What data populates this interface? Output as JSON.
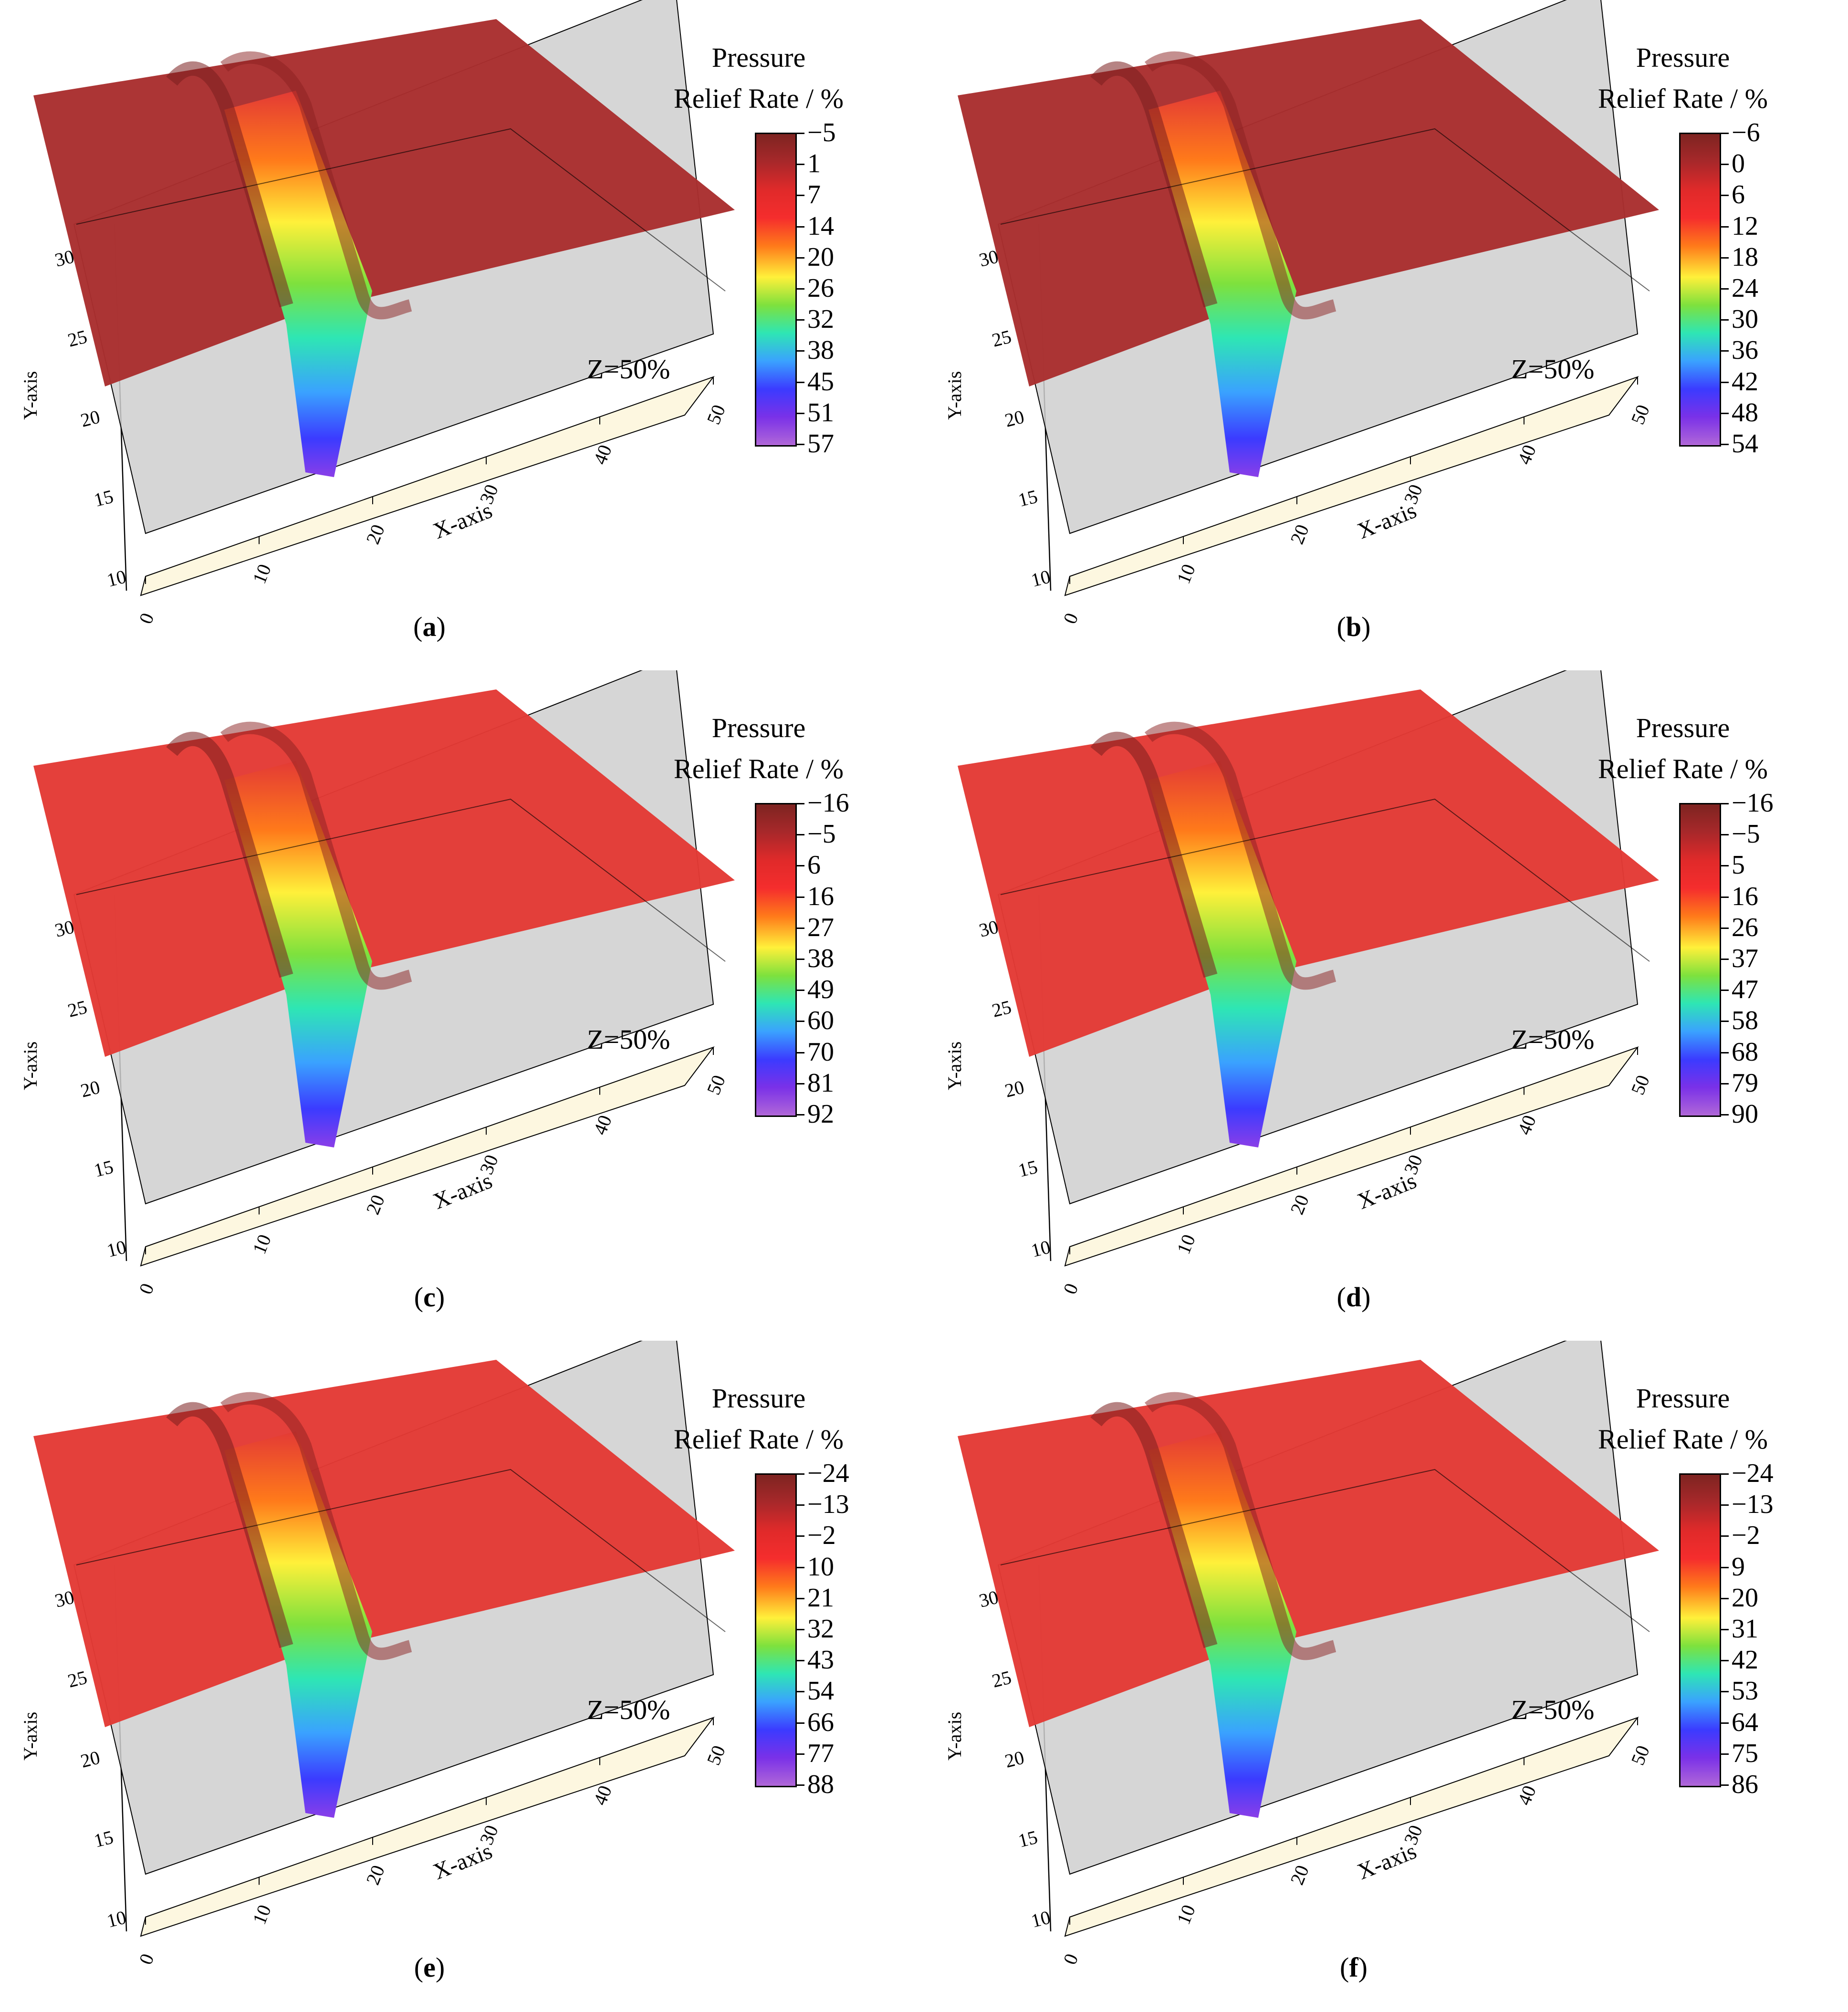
{
  "legend_title_line1": "Pressure",
  "legend_title_line2": "Relief Rate / %",
  "plane_label": "Z=50%",
  "x_axis_label": "X-axis",
  "y_axis_label": "Y-axis",
  "colors": {
    "surface_top": "#a92e2e",
    "surface_mid": "#e33a35",
    "plane_gray": "#cfcfcf",
    "floor_cream": "#fdf7e0"
  },
  "chart_data": [
    {
      "type": "surface",
      "panel_label": "a",
      "x_ticks": [
        "0",
        "10",
        "20",
        "30",
        "40",
        "50"
      ],
      "y_ticks": [
        "10",
        "15",
        "20",
        "25",
        "30"
      ],
      "xlim": [
        0,
        50
      ],
      "ylim": [
        10,
        32
      ],
      "colorbar_ticks": [
        "−5",
        "1",
        "7",
        "14",
        "20",
        "26",
        "32",
        "38",
        "45",
        "51",
        "57"
      ],
      "colorbar_range": [
        -5,
        57
      ]
    },
    {
      "type": "surface",
      "panel_label": "b",
      "x_ticks": [
        "0",
        "10",
        "20",
        "30",
        "40",
        "50"
      ],
      "y_ticks": [
        "10",
        "15",
        "20",
        "25",
        "30"
      ],
      "xlim": [
        0,
        50
      ],
      "ylim": [
        10,
        32
      ],
      "colorbar_ticks": [
        "−6",
        "0",
        "6",
        "12",
        "18",
        "24",
        "30",
        "36",
        "42",
        "48",
        "54"
      ],
      "colorbar_range": [
        -6,
        54
      ]
    },
    {
      "type": "surface",
      "panel_label": "c",
      "x_ticks": [
        "0",
        "10",
        "20",
        "30",
        "40",
        "50"
      ],
      "y_ticks": [
        "10",
        "15",
        "20",
        "25",
        "30"
      ],
      "xlim": [
        0,
        50
      ],
      "ylim": [
        10,
        32
      ],
      "colorbar_ticks": [
        "−16",
        "−5",
        "6",
        "16",
        "27",
        "38",
        "49",
        "60",
        "70",
        "81",
        "92"
      ],
      "colorbar_range": [
        -16,
        92
      ]
    },
    {
      "type": "surface",
      "panel_label": "d",
      "x_ticks": [
        "0",
        "10",
        "20",
        "30",
        "40",
        "50"
      ],
      "y_ticks": [
        "10",
        "15",
        "20",
        "25",
        "30"
      ],
      "xlim": [
        0,
        50
      ],
      "ylim": [
        10,
        32
      ],
      "colorbar_ticks": [
        "−16",
        "−5",
        "5",
        "16",
        "26",
        "37",
        "47",
        "58",
        "68",
        "79",
        "90"
      ],
      "colorbar_range": [
        -16,
        90
      ]
    },
    {
      "type": "surface",
      "panel_label": "e",
      "x_ticks": [
        "0",
        "10",
        "20",
        "30",
        "40",
        "50"
      ],
      "y_ticks": [
        "10",
        "15",
        "20",
        "25",
        "30"
      ],
      "xlim": [
        0,
        50
      ],
      "ylim": [
        10,
        32
      ],
      "colorbar_ticks": [
        "−24",
        "−13",
        "−2",
        "10",
        "21",
        "32",
        "43",
        "54",
        "66",
        "77",
        "88"
      ],
      "colorbar_range": [
        -24,
        88
      ]
    },
    {
      "type": "surface",
      "panel_label": "f",
      "x_ticks": [
        "0",
        "10",
        "20",
        "30",
        "40",
        "50"
      ],
      "y_ticks": [
        "10",
        "15",
        "20",
        "25",
        "30"
      ],
      "xlim": [
        0,
        50
      ],
      "ylim": [
        10,
        32
      ],
      "colorbar_ticks": [
        "−24",
        "−13",
        "−2",
        "9",
        "20",
        "31",
        "42",
        "53",
        "64",
        "75",
        "86"
      ],
      "colorbar_range": [
        -24,
        86
      ]
    }
  ]
}
